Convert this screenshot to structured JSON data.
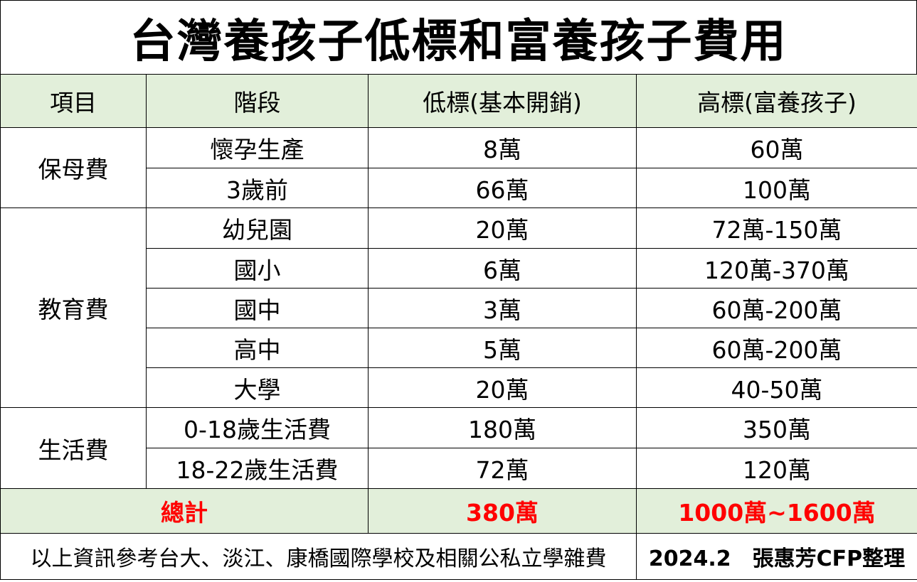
{
  "title": "台灣養孩子低標和富養孩子費用",
  "headers": [
    "項目",
    "階段",
    "低標(基本開銷)",
    "高標(富養孩子)"
  ],
  "groups": [
    {
      "name": "保母費",
      "rows": [
        {
          "stage": "懷孕生產",
          "low": "8萬",
          "high": "60萬"
        },
        {
          "stage": "3歲前",
          "low": "66萬",
          "high": "100萬"
        }
      ]
    },
    {
      "name": "教育費",
      "rows": [
        {
          "stage": "幼兒園",
          "low": "20萬",
          "high": "72萬-150萬"
        },
        {
          "stage": "國小",
          "low": "6萬",
          "high": "120萬-370萬"
        },
        {
          "stage": "國中",
          "low": "3萬",
          "high": "60萬-200萬"
        },
        {
          "stage": "高中",
          "low": "5萬",
          "high": "60萬-200萬"
        },
        {
          "stage": "大學",
          "low": "20萬",
          "high": "40-50萬"
        }
      ]
    },
    {
      "name": "生活費",
      "rows": [
        {
          "stage": "0-18歲生活費",
          "low": "180萬",
          "high": "350萬"
        },
        {
          "stage": "18-22歲生活費",
          "low": "72萬",
          "high": "120萬"
        }
      ]
    }
  ],
  "total": {
    "label": "總計",
    "low": "380萬",
    "high": "1000萬~1600萬"
  },
  "footer": {
    "note": "以上資訊參考台大、淡江、康橋國際學校及相關公私立學雜費",
    "credit": "2024.2　張惠芳CFP整理"
  },
  "colors": {
    "header_bg": "#e2efda",
    "total_text": "#ff0000"
  }
}
